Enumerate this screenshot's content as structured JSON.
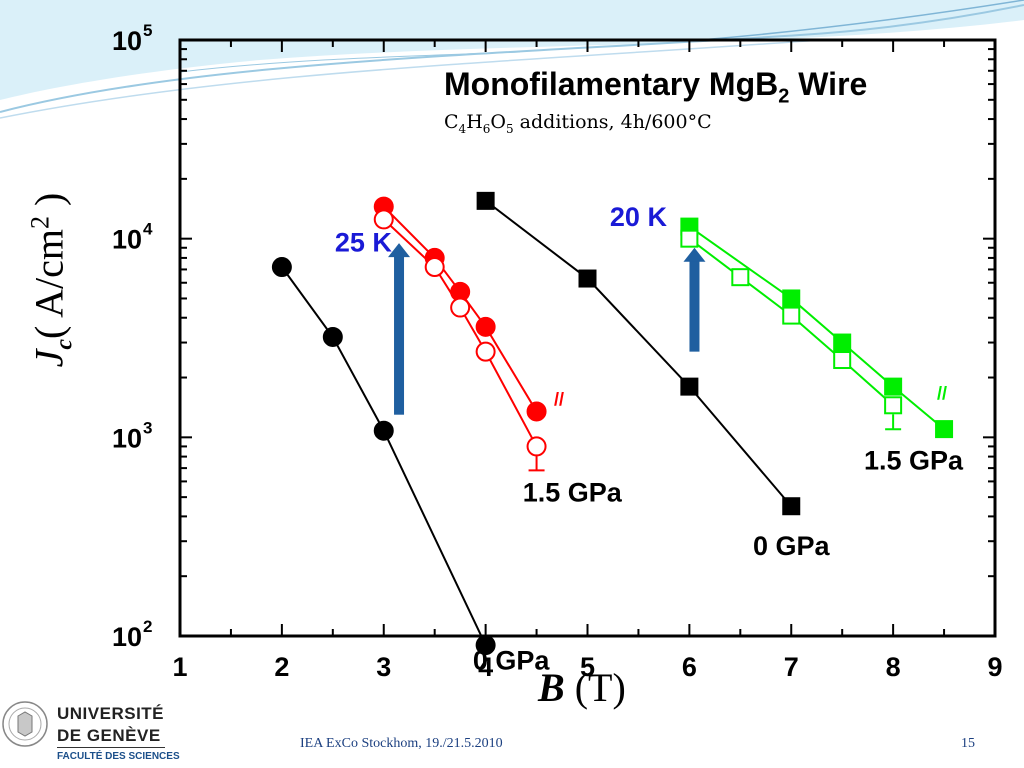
{
  "slide": {
    "footer_text": "IEA ExCo Stockhom, 19./21.5.2010",
    "page_number": "15",
    "logo": {
      "line1": "UNIVERSITÉ",
      "line2": "DE GENÈVE",
      "line3": "FACULTÉ DES SCIENCES"
    }
  },
  "chart_data": {
    "type": "line",
    "title_main": "Monofilamentary MgB",
    "title_sub": "2",
    "title_end": " Wire",
    "subtitle": {
      "p1": "C",
      "s1": "4",
      "p2": "H",
      "s2": "6",
      "p3": "O",
      "s3": "5",
      "p4": " additions, 4h/600°C"
    },
    "xlabel": {
      "symbol": "B",
      "unit": " (T)"
    },
    "ylabel": {
      "symbol": "J",
      "subscript": "c",
      "unit": "( A/cm",
      "power": "2",
      "close": " )"
    },
    "x_axis": {
      "min": 1,
      "max": 9,
      "ticks": [
        "1",
        "2",
        "3",
        "4",
        "5",
        "6",
        "7",
        "8",
        "9"
      ],
      "scale": "linear"
    },
    "y_axis": {
      "min": 100,
      "max": 100000,
      "scale": "log",
      "ticks": [
        {
          "base": "10",
          "exp": "2",
          "value": 100
        },
        {
          "base": "10",
          "exp": "3",
          "value": 1000
        },
        {
          "base": "10",
          "exp": "4",
          "value": 10000
        },
        {
          "base": "10",
          "exp": "5",
          "value": 100000
        }
      ]
    },
    "grid": false,
    "colors": {
      "black": "#000000",
      "red": "#ff0000",
      "green": "#00ee00",
      "blue": "#1a1ad6",
      "arrow": "#1f5fa0"
    },
    "series": [
      {
        "color": "#000000",
        "marker": "circle",
        "filled": true,
        "x": [
          2,
          2.5,
          3,
          4
        ],
        "y": [
          7200,
          3200,
          1080,
          90
        ]
      },
      {
        "color": "#ff0000",
        "marker": "circle",
        "filled": true,
        "x": [
          3,
          3.5,
          3.75,
          4,
          4.5
        ],
        "y": [
          14500,
          8000,
          5400,
          3600,
          1350
        ]
      },
      {
        "color": "#ff0000",
        "marker": "circle",
        "filled": false,
        "x": [
          3,
          3.5,
          3.75,
          4,
          4.5
        ],
        "y": [
          12500,
          7200,
          4500,
          2700,
          900
        ],
        "error_bar_last": true
      },
      {
        "color": "#000000",
        "marker": "square",
        "filled": true,
        "x": [
          4,
          5,
          6,
          7
        ],
        "y": [
          15500,
          6300,
          1800,
          450
        ]
      },
      {
        "color": "#00ee00",
        "marker": "square",
        "filled": true,
        "x": [
          6,
          7,
          7.5,
          8,
          8.5
        ],
        "y": [
          11500,
          5000,
          3000,
          1800,
          1100
        ]
      },
      {
        "color": "#00ee00",
        "marker": "square",
        "filled": false,
        "x": [
          6,
          6.5,
          7,
          7.5,
          8
        ],
        "y": [
          10000,
          6400,
          4100,
          2450,
          1450
        ],
        "error_bar_last": true
      }
    ],
    "annotations": [
      {
        "text": "25 K",
        "color": "#1a1ad6"
      },
      {
        "text": "20 K",
        "color": "#1a1ad6"
      },
      {
        "text": "1.5 GPa",
        "color": "#000000"
      },
      {
        "text": "0 GPa",
        "color": "#000000"
      },
      {
        "text": "0 GPa",
        "color": "#000000"
      },
      {
        "text": "1.5 GPa",
        "color": "#000000"
      },
      {
        "text": "//",
        "color": "#ff0000"
      },
      {
        "text": "//",
        "color": "#00ee00"
      }
    ],
    "arrows": [
      {
        "x": 3.15,
        "y_from": 1300,
        "y_to": 9500,
        "color": "#1f5fa0"
      },
      {
        "x": 6.05,
        "y_from": 2700,
        "y_to": 9000,
        "color": "#1f5fa0"
      }
    ]
  }
}
